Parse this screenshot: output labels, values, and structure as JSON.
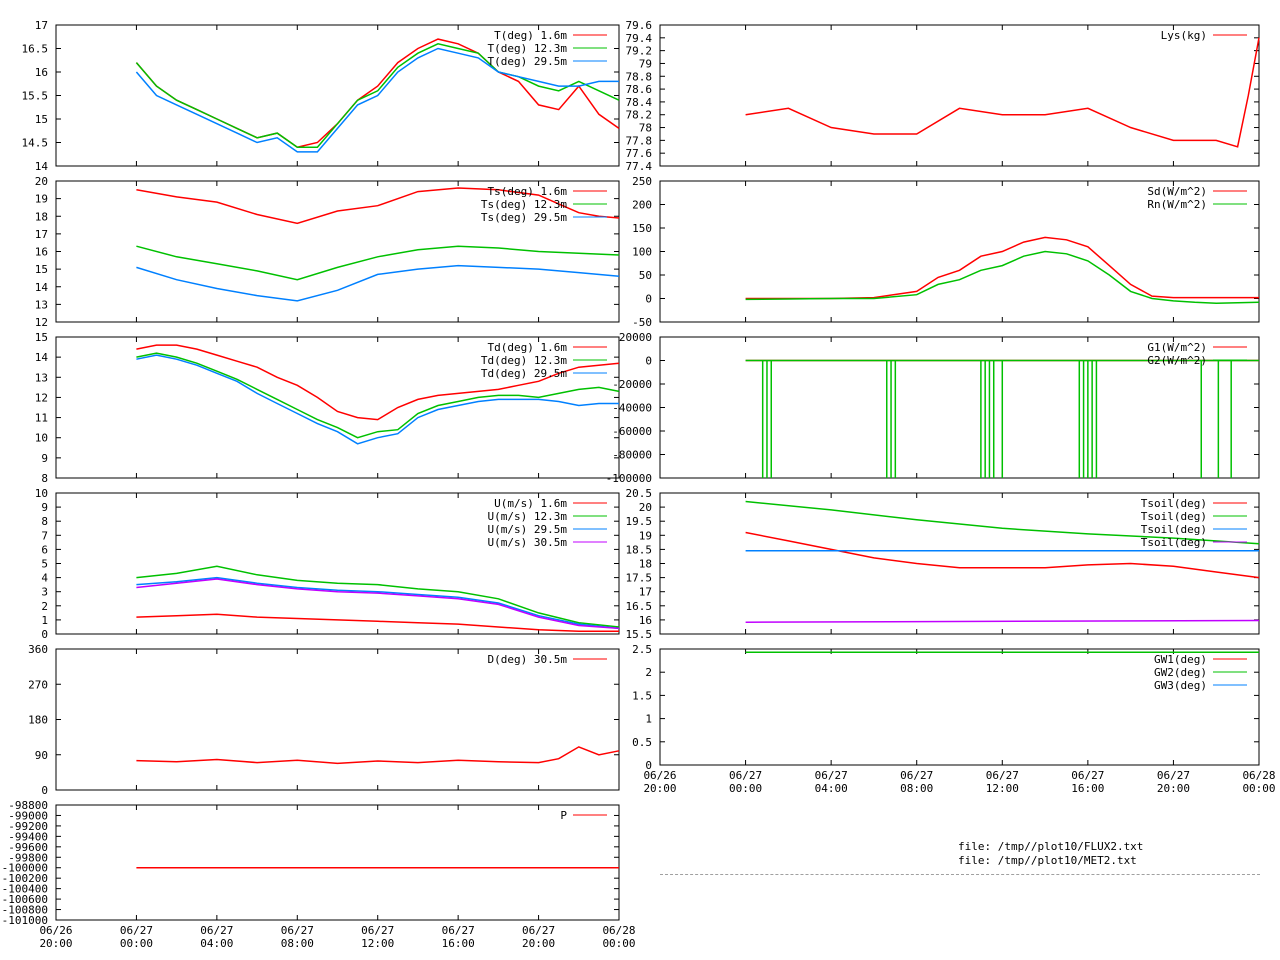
{
  "colors": {
    "red": "#ff0000",
    "green": "#00c000",
    "blue": "#0080ff",
    "purple": "#c000ff",
    "olive": "#808000"
  },
  "files": [
    "file: /tmp//plot10/FLUX2.txt",
    "file: /tmp//plot10/MET2.txt"
  ],
  "x_axis": {
    "tick_labels": [
      [
        "06/26",
        "20:00"
      ],
      [
        "06/27",
        "00:00"
      ],
      [
        "06/27",
        "04:00"
      ],
      [
        "06/27",
        "08:00"
      ],
      [
        "06/27",
        "12:00"
      ],
      [
        "06/27",
        "16:00"
      ],
      [
        "06/27",
        "20:00"
      ],
      [
        "06/28",
        "00:00"
      ]
    ],
    "range_hours": [
      0,
      28
    ]
  },
  "chart_data": [
    {
      "id": "temp",
      "type": "line",
      "ylim": [
        14,
        17
      ],
      "yticks": [
        "14",
        "14.5",
        "15",
        "15.5",
        "16",
        "16.5",
        "17"
      ],
      "series": [
        {
          "name": "T(deg)  1.6m",
          "color": "red",
          "x": [
            4,
            5,
            6,
            7,
            8,
            9,
            10,
            11,
            12,
            13,
            14,
            15,
            16,
            17,
            18,
            19,
            20,
            21,
            22,
            23,
            24,
            25,
            26,
            27,
            28
          ],
          "y": [
            16.2,
            15.7,
            15.4,
            15.2,
            15.0,
            14.8,
            14.6,
            14.7,
            14.4,
            14.5,
            14.9,
            15.4,
            15.7,
            16.2,
            16.5,
            16.7,
            16.6,
            16.4,
            16.0,
            15.8,
            15.3,
            15.2,
            15.7,
            15.1,
            14.8
          ]
        },
        {
          "name": "T(deg) 12.3m",
          "color": "green",
          "x": [
            4,
            5,
            6,
            7,
            8,
            9,
            10,
            11,
            12,
            13,
            14,
            15,
            16,
            17,
            18,
            19,
            20,
            21,
            22,
            23,
            24,
            25,
            26,
            27,
            28
          ],
          "y": [
            16.2,
            15.7,
            15.4,
            15.2,
            15.0,
            14.8,
            14.6,
            14.7,
            14.4,
            14.4,
            14.9,
            15.4,
            15.6,
            16.1,
            16.4,
            16.6,
            16.5,
            16.4,
            16.0,
            15.9,
            15.7,
            15.6,
            15.8,
            15.6,
            15.4
          ]
        },
        {
          "name": "T(deg) 29.5m",
          "color": "blue",
          "x": [
            4,
            5,
            6,
            7,
            8,
            9,
            10,
            11,
            12,
            13,
            14,
            15,
            16,
            17,
            18,
            19,
            20,
            21,
            22,
            23,
            24,
            25,
            26,
            27,
            28
          ],
          "y": [
            16.0,
            15.5,
            15.3,
            15.1,
            14.9,
            14.7,
            14.5,
            14.6,
            14.3,
            14.3,
            14.8,
            15.3,
            15.5,
            16.0,
            16.3,
            16.5,
            16.4,
            16.3,
            16.0,
            15.9,
            15.8,
            15.7,
            15.7,
            15.8,
            15.8
          ]
        }
      ]
    },
    {
      "id": "ts",
      "type": "line",
      "ylim": [
        12,
        20
      ],
      "yticks": [
        "12",
        "13",
        "14",
        "15",
        "16",
        "17",
        "18",
        "19",
        "20"
      ],
      "series": [
        {
          "name": "Ts(deg)  1.6m",
          "color": "red",
          "x": [
            4,
            6,
            8,
            10,
            12,
            14,
            16,
            18,
            20,
            22,
            24,
            25,
            26,
            27,
            28
          ],
          "y": [
            19.5,
            19.1,
            18.8,
            18.1,
            17.6,
            18.3,
            18.6,
            19.4,
            19.6,
            19.5,
            19.2,
            18.7,
            18.2,
            18.0,
            17.9
          ]
        },
        {
          "name": "Ts(deg) 12.3m",
          "color": "green",
          "x": [
            4,
            6,
            8,
            10,
            12,
            14,
            16,
            18,
            20,
            22,
            24,
            26,
            28
          ],
          "y": [
            16.3,
            15.7,
            15.3,
            14.9,
            14.4,
            15.1,
            15.7,
            16.1,
            16.3,
            16.2,
            16.0,
            15.9,
            15.8
          ]
        },
        {
          "name": "Ts(deg) 29.5m",
          "color": "blue",
          "x": [
            4,
            6,
            8,
            10,
            12,
            14,
            16,
            18,
            20,
            22,
            24,
            26,
            28
          ],
          "y": [
            15.1,
            14.4,
            13.9,
            13.5,
            13.2,
            13.8,
            14.7,
            15.0,
            15.2,
            15.1,
            15.0,
            14.8,
            14.6
          ]
        }
      ]
    },
    {
      "id": "td",
      "type": "line",
      "ylim": [
        8,
        15
      ],
      "yticks": [
        "8",
        "9",
        "10",
        "11",
        "12",
        "13",
        "14",
        "15"
      ],
      "series": [
        {
          "name": "Td(deg)  1.6m",
          "color": "red",
          "x": [
            4,
            5,
            6,
            7,
            8,
            9,
            10,
            11,
            12,
            13,
            14,
            15,
            16,
            17,
            18,
            19,
            20,
            21,
            22,
            23,
            24,
            25,
            26,
            27,
            28
          ],
          "y": [
            14.4,
            14.6,
            14.6,
            14.4,
            14.1,
            13.8,
            13.5,
            13.0,
            12.6,
            12.0,
            11.3,
            11.0,
            10.9,
            11.5,
            11.9,
            12.1,
            12.2,
            12.3,
            12.4,
            12.6,
            12.8,
            13.2,
            13.5,
            13.6,
            13.7
          ]
        },
        {
          "name": "Td(deg) 12.3m",
          "color": "green",
          "x": [
            4,
            5,
            6,
            7,
            8,
            9,
            10,
            11,
            12,
            13,
            14,
            15,
            16,
            17,
            18,
            19,
            20,
            21,
            22,
            23,
            24,
            25,
            26,
            27,
            28
          ],
          "y": [
            14.0,
            14.2,
            14.0,
            13.7,
            13.3,
            12.9,
            12.4,
            11.9,
            11.4,
            10.9,
            10.5,
            10.0,
            10.3,
            10.4,
            11.2,
            11.6,
            11.8,
            12.0,
            12.1,
            12.1,
            12.0,
            12.2,
            12.4,
            12.5,
            12.3
          ]
        },
        {
          "name": "Td(deg) 29.5m",
          "color": "blue",
          "x": [
            4,
            5,
            6,
            7,
            8,
            9,
            10,
            11,
            12,
            13,
            14,
            15,
            16,
            17,
            18,
            19,
            20,
            21,
            22,
            23,
            24,
            25,
            26,
            27,
            28
          ],
          "y": [
            13.9,
            14.1,
            13.9,
            13.6,
            13.2,
            12.8,
            12.2,
            11.7,
            11.2,
            10.7,
            10.3,
            9.7,
            10.0,
            10.2,
            11.0,
            11.4,
            11.6,
            11.8,
            11.9,
            11.9,
            11.9,
            11.8,
            11.6,
            11.7,
            11.7
          ]
        }
      ]
    },
    {
      "id": "wind",
      "type": "line",
      "ylim": [
        0,
        10
      ],
      "yticks": [
        "0",
        "1",
        "2",
        "3",
        "4",
        "5",
        "6",
        "7",
        "8",
        "9",
        "10"
      ],
      "series": [
        {
          "name": "U(m/s)  1.6m",
          "color": "red",
          "x": [
            4,
            6,
            8,
            10,
            12,
            14,
            16,
            18,
            20,
            22,
            24,
            26,
            28
          ],
          "y": [
            1.2,
            1.3,
            1.4,
            1.2,
            1.1,
            1.0,
            0.9,
            0.8,
            0.7,
            0.5,
            0.3,
            0.2,
            0.2
          ]
        },
        {
          "name": "U(m/s) 12.3m",
          "color": "green",
          "x": [
            4,
            6,
            8,
            10,
            12,
            14,
            16,
            18,
            20,
            22,
            24,
            26,
            28
          ],
          "y": [
            4.0,
            4.3,
            4.8,
            4.2,
            3.8,
            3.6,
            3.5,
            3.2,
            3.0,
            2.5,
            1.5,
            0.8,
            0.5
          ]
        },
        {
          "name": "U(m/s) 29.5m",
          "color": "blue",
          "x": [
            4,
            6,
            8,
            10,
            12,
            14,
            16,
            18,
            20,
            22,
            24,
            26,
            28
          ],
          "y": [
            3.5,
            3.7,
            4.0,
            3.6,
            3.3,
            3.1,
            3.0,
            2.8,
            2.6,
            2.2,
            1.3,
            0.7,
            0.4
          ]
        },
        {
          "name": "U(m/s) 30.5m",
          "color": "purple",
          "x": [
            4,
            6,
            8,
            10,
            12,
            14,
            16,
            18,
            20,
            22,
            24,
            26,
            28
          ],
          "y": [
            3.3,
            3.6,
            3.9,
            3.5,
            3.2,
            3.0,
            2.9,
            2.7,
            2.5,
            2.1,
            1.2,
            0.6,
            0.4
          ]
        }
      ]
    },
    {
      "id": "dir",
      "type": "line",
      "ylim": [
        0,
        360
      ],
      "yticks": [
        "0",
        "90",
        "180",
        "270",
        "360"
      ],
      "series": [
        {
          "name": "D(deg)  30.5m",
          "color": "red",
          "x": [
            4,
            6,
            8,
            10,
            12,
            14,
            16,
            18,
            20,
            22,
            24,
            25,
            26,
            27,
            28
          ],
          "y": [
            75,
            72,
            78,
            70,
            76,
            68,
            74,
            70,
            76,
            72,
            70,
            80,
            110,
            90,
            100
          ]
        }
      ]
    },
    {
      "id": "press",
      "type": "line",
      "ylim": [
        -101000,
        -98800
      ],
      "yticks": [
        "-101000",
        "-100800",
        "-100600",
        "-100400",
        "-100200",
        "-100000",
        "-99800",
        "-99600",
        "-99400",
        "-99200",
        "-99000",
        "-98800"
      ],
      "series": [
        {
          "name": "P",
          "color": "red",
          "x": [
            4,
            28
          ],
          "y": [
            -100000,
            -100000
          ]
        }
      ]
    },
    {
      "id": "lys",
      "type": "line",
      "ylim": [
        77.4,
        79.6
      ],
      "yticks": [
        "77.4",
        "77.6",
        "77.8",
        "78",
        "78.2",
        "78.4",
        "78.6",
        "78.8",
        "79",
        "79.2",
        "79.4",
        "79.6"
      ],
      "series": [
        {
          "name": "Lys(kg)",
          "color": "red",
          "x": [
            4,
            6,
            8,
            10,
            12,
            14,
            16,
            18,
            20,
            22,
            24,
            26,
            27,
            27.5,
            28
          ],
          "y": [
            78.2,
            78.3,
            78.0,
            77.9,
            77.9,
            78.3,
            78.2,
            78.2,
            78.3,
            78.0,
            77.8,
            77.8,
            77.7,
            78.5,
            79.4
          ]
        }
      ]
    },
    {
      "id": "rad",
      "type": "line",
      "ylim": [
        -50,
        250
      ],
      "yticks": [
        "-50",
        "0",
        "50",
        "100",
        "150",
        "200",
        "250"
      ],
      "series": [
        {
          "name": "Sd(W/m^2)",
          "color": "red",
          "x": [
            4,
            6,
            8,
            10,
            12,
            13,
            14,
            15,
            16,
            17,
            18,
            19,
            20,
            21,
            22,
            23,
            24,
            26,
            28
          ],
          "y": [
            0,
            0,
            0,
            2,
            15,
            45,
            60,
            90,
            100,
            120,
            130,
            125,
            110,
            70,
            30,
            5,
            2,
            2,
            2
          ]
        },
        {
          "name": "Rn(W/m^2)",
          "color": "green",
          "x": [
            4,
            6,
            8,
            10,
            12,
            13,
            14,
            15,
            16,
            17,
            18,
            19,
            20,
            21,
            22,
            23,
            24,
            25,
            26,
            28
          ],
          "y": [
            -2,
            -1,
            0,
            0,
            8,
            30,
            40,
            60,
            70,
            90,
            100,
            95,
            80,
            50,
            15,
            0,
            -5,
            -8,
            -10,
            -8
          ]
        }
      ]
    },
    {
      "id": "gflux",
      "type": "line",
      "ylim": [
        -100000,
        20000
      ],
      "yticks": [
        "-100000",
        "-80000",
        "-60000",
        "-40000",
        "-20000",
        "0",
        "20000"
      ],
      "series": [
        {
          "name": "G1(W/m^2)",
          "color": "red",
          "x": [
            4,
            28
          ],
          "y": [
            0,
            0
          ]
        },
        {
          "name": "G2(W/m^2)",
          "color": "green",
          "x": [
            4,
            28
          ],
          "y": [
            0,
            0
          ],
          "spikes_x": [
            4.8,
            5.0,
            5.2,
            10.6,
            10.8,
            11.0,
            15.0,
            15.2,
            15.4,
            15.6,
            16.0,
            19.6,
            19.8,
            20.0,
            20.2,
            20.4,
            25.3,
            26.1,
            26.7
          ]
        }
      ]
    },
    {
      "id": "tsoil",
      "type": "line",
      "ylim": [
        15.5,
        20.5
      ],
      "yticks": [
        "15.5",
        "16",
        "16.5",
        "17",
        "17.5",
        "18",
        "18.5",
        "19",
        "19.5",
        "20",
        "20.5"
      ],
      "series": [
        {
          "name": "Tsoil(deg)",
          "color": "red",
          "x": [
            4,
            6,
            8,
            10,
            12,
            14,
            16,
            18,
            20,
            22,
            24,
            26,
            28
          ],
          "y": [
            19.1,
            18.8,
            18.5,
            18.2,
            18.0,
            17.85,
            17.85,
            17.85,
            17.95,
            18.0,
            17.9,
            17.7,
            17.5
          ]
        },
        {
          "name": "Tsoil(deg)",
          "color": "green",
          "x": [
            4,
            8,
            12,
            16,
            20,
            24,
            28
          ],
          "y": [
            20.2,
            19.9,
            19.55,
            19.25,
            19.05,
            18.9,
            18.7
          ]
        },
        {
          "name": "Tsoil(deg)",
          "color": "blue",
          "x": [
            4,
            28
          ],
          "y": [
            18.45,
            18.45
          ]
        },
        {
          "name": "Tsoil(deg)",
          "color": "purple",
          "x": [
            4,
            28
          ],
          "y": [
            15.92,
            15.98
          ]
        }
      ]
    },
    {
      "id": "gw",
      "type": "line",
      "ylim": [
        0,
        2.5
      ],
      "yticks": [
        "0",
        "0.5",
        "1",
        "1.5",
        "2",
        "2.5"
      ],
      "series": [
        {
          "name": "GW1(deg)",
          "color": "red",
          "x": [],
          "y": []
        },
        {
          "name": "GW2(deg)",
          "color": "green",
          "x": [
            4,
            28
          ],
          "y": [
            2.43,
            2.43
          ]
        },
        {
          "name": "GW3(deg)",
          "color": "blue",
          "x": [],
          "y": []
        }
      ]
    }
  ]
}
